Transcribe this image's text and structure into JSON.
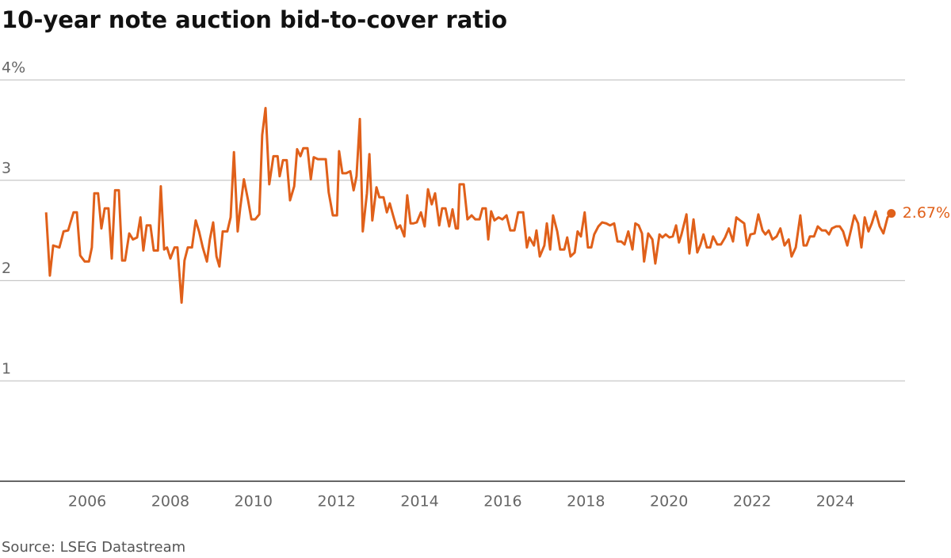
{
  "chart_data": {
    "type": "line",
    "title": "10-year note auction bid-to-cover ratio",
    "source": "Source: LSEG Datastream",
    "color": "#e0601a",
    "grid": true,
    "xlim": [
      2003.9,
      2025.68
    ],
    "xticks": [
      2006,
      2008,
      2010,
      2012,
      2014,
      2016,
      2018,
      2020,
      2022,
      2024
    ],
    "ylim": [
      0,
      4
    ],
    "yticks": [
      1,
      2,
      3,
      {
        "value": 4,
        "label": "4%"
      }
    ],
    "end_label": "2.67%",
    "x": [
      2005.01,
      2005.1,
      2005.18,
      2005.33,
      2005.43,
      2005.54,
      2005.67,
      2005.75,
      2005.83,
      2005.94,
      2006.04,
      2006.11,
      2006.17,
      2006.26,
      2006.34,
      2006.42,
      2006.51,
      2006.59,
      2006.67,
      2006.76,
      2006.84,
      2006.91,
      2007.01,
      2007.1,
      2007.2,
      2007.28,
      2007.35,
      2007.43,
      2007.52,
      2007.6,
      2007.7,
      2007.77,
      2007.85,
      2007.92,
      2008.0,
      2008.1,
      2008.17,
      2008.27,
      2008.34,
      2008.42,
      2008.52,
      2008.61,
      2008.69,
      2008.78,
      2008.88,
      2008.95,
      2009.03,
      2009.11,
      2009.18,
      2009.26,
      2009.37,
      2009.45,
      2009.53,
      2009.62,
      2009.68,
      2009.77,
      2009.87,
      2009.95,
      2010.04,
      2010.14,
      2010.21,
      2010.29,
      2010.38,
      2010.48,
      2010.58,
      2010.63,
      2010.71,
      2010.8,
      2010.88,
      2010.98,
      2011.05,
      2011.13,
      2011.2,
      2011.3,
      2011.38,
      2011.45,
      2011.55,
      2011.66,
      2011.74,
      2011.81,
      2011.91,
      2012.01,
      2012.06,
      2012.14,
      2012.23,
      2012.33,
      2012.41,
      2012.48,
      2012.56,
      2012.63,
      2012.73,
      2012.79,
      2012.86,
      2012.96,
      2013.03,
      2013.13,
      2013.21,
      2013.28,
      2013.36,
      2013.45,
      2013.53,
      2013.63,
      2013.7,
      2013.78,
      2013.85,
      2013.93,
      2014.03,
      2014.12,
      2014.2,
      2014.29,
      2014.37,
      2014.47,
      2014.54,
      2014.62,
      2014.71,
      2014.79,
      2014.87,
      2014.92,
      2014.96,
      2015.06,
      2015.15,
      2015.25,
      2015.34,
      2015.44,
      2015.51,
      2015.59,
      2015.65,
      2015.72,
      2015.8,
      2015.9,
      2015.99,
      2016.09,
      2016.18,
      2016.28,
      2016.37,
      2016.49,
      2016.58,
      2016.64,
      2016.75,
      2016.81,
      2016.89,
      2017.0,
      2017.06,
      2017.14,
      2017.21,
      2017.31,
      2017.38,
      2017.48,
      2017.55,
      2017.63,
      2017.73,
      2017.8,
      2017.88,
      2017.97,
      2018.05,
      2018.13,
      2018.2,
      2018.3,
      2018.39,
      2018.49,
      2018.58,
      2018.68,
      2018.76,
      2018.85,
      2018.93,
      2019.02,
      2019.12,
      2019.19,
      2019.27,
      2019.35,
      2019.4,
      2019.5,
      2019.6,
      2019.67,
      2019.77,
      2019.84,
      2019.92,
      2020.01,
      2020.09,
      2020.17,
      2020.24,
      2020.3,
      2020.42,
      2020.49,
      2020.59,
      2020.68,
      2020.76,
      2020.83,
      2020.91,
      2020.99,
      2021.06,
      2021.16,
      2021.25,
      2021.35,
      2021.44,
      2021.54,
      2021.62,
      2021.71,
      2021.81,
      2021.88,
      2021.96,
      2022.06,
      2022.15,
      2022.25,
      2022.32,
      2022.4,
      2022.49,
      2022.59,
      2022.68,
      2022.78,
      2022.88,
      2022.95,
      2023.05,
      2023.16,
      2023.24,
      2023.31,
      2023.39,
      2023.49,
      2023.58,
      2023.68,
      2023.77,
      2023.85,
      2023.92,
      2024.02,
      2024.11,
      2024.19,
      2024.29,
      2024.36,
      2024.46,
      2024.55,
      2024.63,
      2024.71,
      2024.8,
      2024.88,
      2024.97,
      2025.07,
      2025.16,
      2025.26,
      2025.35
    ],
    "values": [
      2.68,
      2.05,
      2.35,
      2.33,
      2.49,
      2.5,
      2.68,
      2.68,
      2.25,
      2.19,
      2.19,
      2.33,
      2.87,
      2.87,
      2.52,
      2.72,
      2.72,
      2.22,
      2.9,
      2.9,
      2.2,
      2.2,
      2.47,
      2.41,
      2.43,
      2.63,
      2.3,
      2.55,
      2.55,
      2.3,
      2.3,
      2.94,
      2.31,
      2.33,
      2.22,
      2.33,
      2.33,
      1.78,
      2.2,
      2.33,
      2.33,
      2.6,
      2.49,
      2.33,
      2.19,
      2.41,
      2.58,
      2.24,
      2.14,
      2.49,
      2.49,
      2.63,
      3.28,
      2.49,
      2.72,
      3.01,
      2.8,
      2.61,
      2.61,
      2.66,
      3.45,
      3.72,
      2.96,
      3.24,
      3.24,
      3.04,
      3.2,
      3.2,
      2.8,
      2.94,
      3.31,
      3.24,
      3.32,
      3.32,
      3.01,
      3.23,
      3.21,
      3.21,
      3.21,
      2.88,
      2.65,
      2.65,
      3.29,
      3.07,
      3.07,
      3.09,
      2.9,
      3.04,
      3.61,
      2.49,
      2.87,
      3.26,
      2.6,
      2.93,
      2.83,
      2.83,
      2.68,
      2.77,
      2.65,
      2.52,
      2.55,
      2.44,
      2.85,
      2.57,
      2.57,
      2.58,
      2.68,
      2.54,
      2.91,
      2.76,
      2.87,
      2.55,
      2.72,
      2.72,
      2.54,
      2.71,
      2.52,
      2.52,
      2.96,
      2.96,
      2.61,
      2.65,
      2.61,
      2.61,
      2.72,
      2.72,
      2.41,
      2.69,
      2.6,
      2.63,
      2.61,
      2.65,
      2.5,
      2.5,
      2.68,
      2.68,
      2.33,
      2.43,
      2.35,
      2.5,
      2.24,
      2.35,
      2.57,
      2.31,
      2.65,
      2.49,
      2.31,
      2.31,
      2.43,
      2.24,
      2.28,
      2.49,
      2.44,
      2.68,
      2.33,
      2.33,
      2.46,
      2.54,
      2.58,
      2.57,
      2.55,
      2.57,
      2.39,
      2.39,
      2.36,
      2.49,
      2.31,
      2.57,
      2.55,
      2.47,
      2.19,
      2.47,
      2.41,
      2.17,
      2.46,
      2.43,
      2.46,
      2.43,
      2.44,
      2.55,
      2.38,
      2.46,
      2.66,
      2.27,
      2.61,
      2.28,
      2.36,
      2.46,
      2.33,
      2.33,
      2.44,
      2.36,
      2.36,
      2.43,
      2.52,
      2.39,
      2.63,
      2.6,
      2.57,
      2.35,
      2.46,
      2.47,
      2.66,
      2.5,
      2.46,
      2.5,
      2.41,
      2.44,
      2.52,
      2.35,
      2.41,
      2.24,
      2.33,
      2.65,
      2.35,
      2.35,
      2.44,
      2.44,
      2.54,
      2.5,
      2.5,
      2.46,
      2.52,
      2.54,
      2.54,
      2.49,
      2.35,
      2.47,
      2.65,
      2.57,
      2.33,
      2.63,
      2.49,
      2.57,
      2.69,
      2.54,
      2.47,
      2.63,
      2.67
    ]
  }
}
